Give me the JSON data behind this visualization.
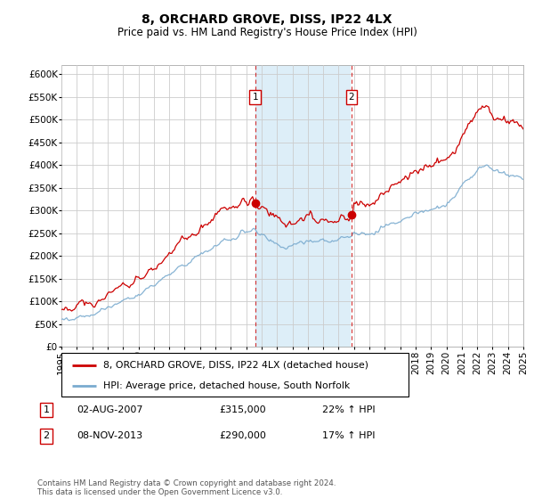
{
  "title": "8, ORCHARD GROVE, DISS, IP22 4LX",
  "subtitle": "Price paid vs. HM Land Registry's House Price Index (HPI)",
  "x_start_year": 1995,
  "x_end_year": 2025,
  "ylim": [
    0,
    620000
  ],
  "yticks": [
    0,
    50000,
    100000,
    150000,
    200000,
    250000,
    300000,
    350000,
    400000,
    450000,
    500000,
    550000,
    600000
  ],
  "sale1_date": "02-AUG-2007",
  "sale1_price": 315000,
  "sale1_year": 2007.583,
  "sale1_label": "1",
  "sale1_hpi_pct": "22% ↑ HPI",
  "sale2_date": "08-NOV-2013",
  "sale2_price": 290000,
  "sale2_year": 2013.833,
  "sale2_label": "2",
  "sale2_hpi_pct": "17% ↑ HPI",
  "line1_label": "8, ORCHARD GROVE, DISS, IP22 4LX (detached house)",
  "line1_color": "#cc0000",
  "line2_label": "HPI: Average price, detached house, South Norfolk",
  "line2_color": "#7aabcf",
  "shaded_color": "#ddeef8",
  "marker_box_color": "#cc0000",
  "grid_color": "#cccccc",
  "footer_text": "Contains HM Land Registry data © Crown copyright and database right 2024.\nThis data is licensed under the Open Government Licence v3.0.",
  "title_fontsize": 10,
  "subtitle_fontsize": 8.5,
  "tick_fontsize": 7.5
}
